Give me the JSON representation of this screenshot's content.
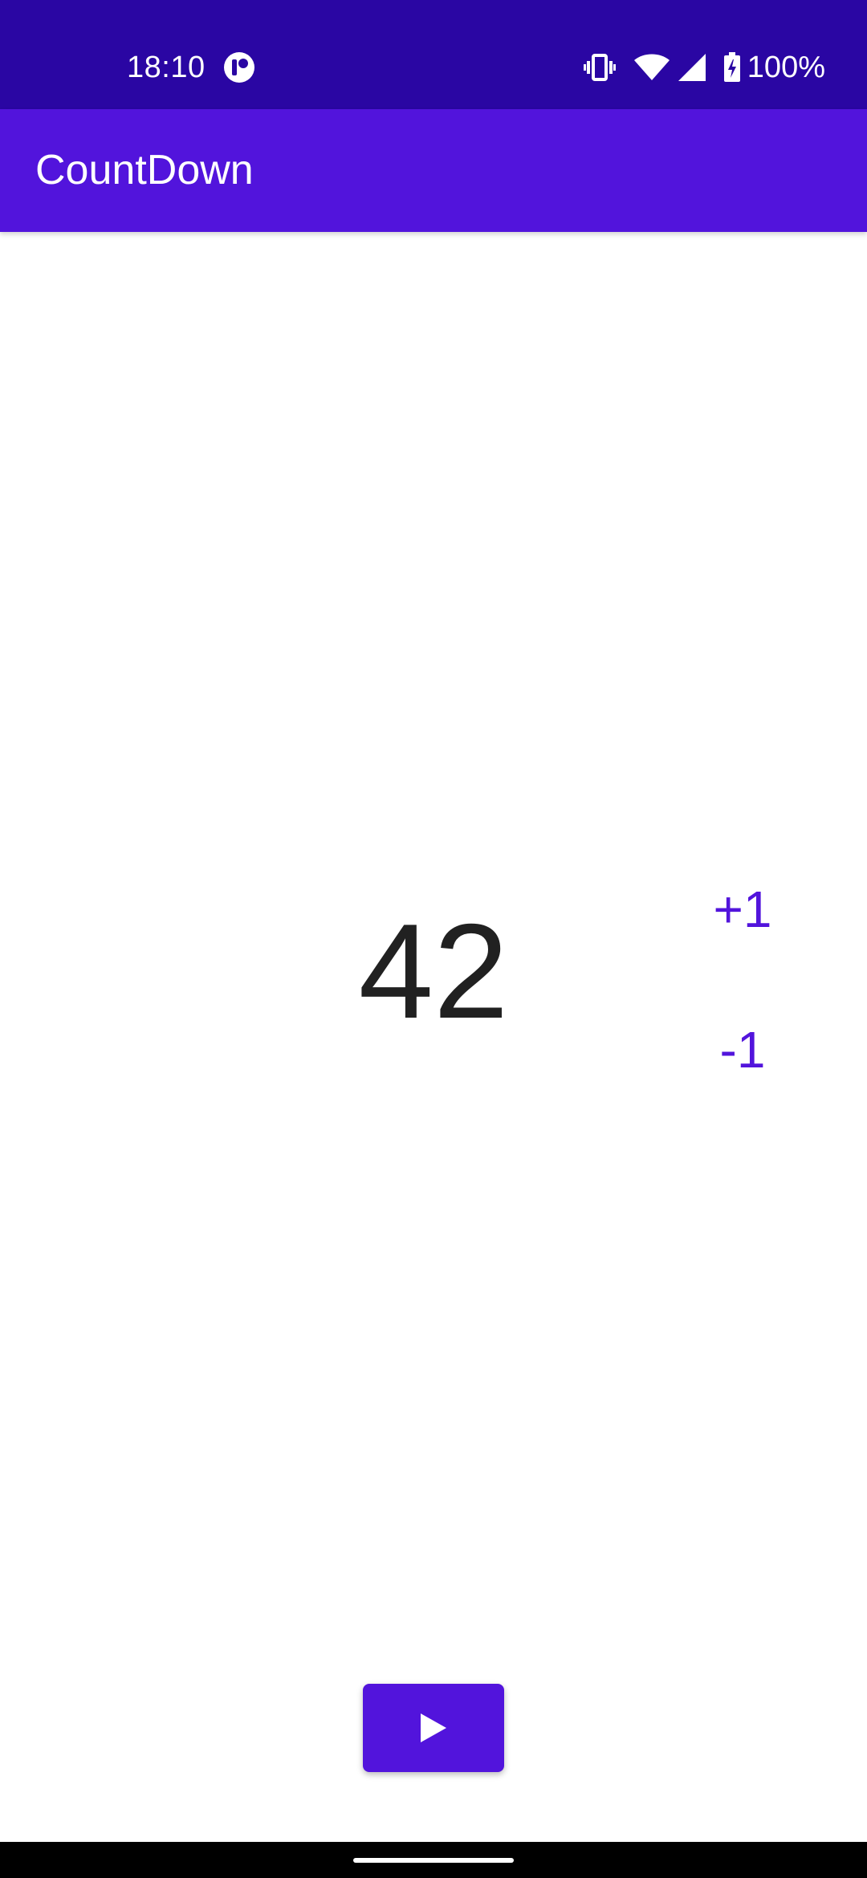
{
  "status_bar": {
    "time": "18:10",
    "app_icon": "notification-app-icon",
    "vibrate_icon": "vibrate-icon",
    "wifi_icon": "wifi-icon",
    "signal_icon": "cell-signal-icon",
    "battery_icon": "battery-charging-icon",
    "battery_level": "100%",
    "background_color": "#2a06a3"
  },
  "app_bar": {
    "title": "CountDown",
    "background_color": "#5214dc"
  },
  "counter": {
    "value": "42",
    "increment_label": "+1",
    "decrement_label": "-1",
    "accent_color": "#5214dc"
  },
  "controls": {
    "play_icon": "play-icon"
  },
  "nav_bar": {
    "handle": "home-gesture-handle"
  }
}
